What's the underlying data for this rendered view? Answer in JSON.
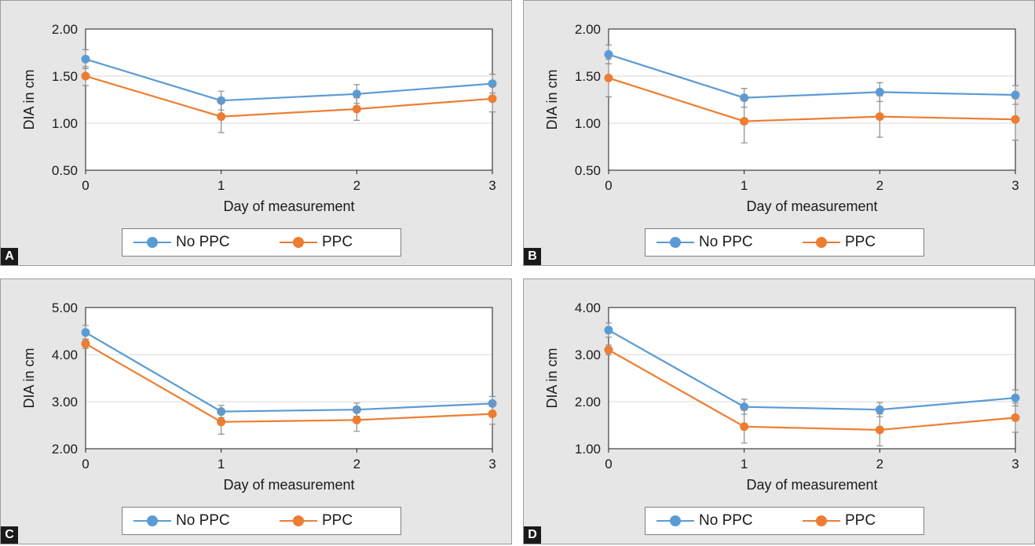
{
  "colors": {
    "no_ppc": "#5b9bd5",
    "ppc": "#ed7d31",
    "error_bar": "#8c8c8c",
    "grid": "#d9d9d9",
    "axis": "#1a1a1a",
    "panel_bg": "#e6e6e6"
  },
  "chart_data": [
    {
      "panel": "A",
      "type": "line",
      "xlabel": "Day of measurement",
      "ylabel": "DIA in cm",
      "x": [
        0,
        1,
        2,
        3
      ],
      "ylim": [
        0.5,
        2.0
      ],
      "yticks": [
        "0.50",
        "1.00",
        "1.50",
        "2.00"
      ],
      "grid": true,
      "legend": "bottom",
      "series": [
        {
          "name": "No PPC",
          "values": [
            1.68,
            1.24,
            1.31,
            1.42
          ],
          "error": [
            0.1,
            0.1,
            0.1,
            0.1
          ]
        },
        {
          "name": "PPC",
          "values": [
            1.5,
            1.07,
            1.15,
            1.26
          ],
          "error": [
            0.1,
            0.17,
            0.12,
            0.14
          ]
        }
      ]
    },
    {
      "panel": "B",
      "type": "line",
      "xlabel": "Day of measurement",
      "ylabel": "DIA in cm",
      "x": [
        0,
        1,
        2,
        3
      ],
      "ylim": [
        0.5,
        2.0
      ],
      "yticks": [
        "0.50",
        "1.00",
        "1.50",
        "2.00"
      ],
      "grid": true,
      "legend": "bottom",
      "series": [
        {
          "name": "No PPC",
          "values": [
            1.73,
            1.27,
            1.33,
            1.3
          ],
          "error": [
            0.1,
            0.1,
            0.1,
            0.1
          ]
        },
        {
          "name": "PPC",
          "values": [
            1.48,
            1.02,
            1.07,
            1.04
          ],
          "error": [
            0.2,
            0.23,
            0.22,
            0.22
          ]
        }
      ]
    },
    {
      "panel": "C",
      "type": "line",
      "xlabel": "Day of measurement",
      "ylabel": "DIA in cm",
      "x": [
        0,
        1,
        2,
        3
      ],
      "ylim": [
        2.0,
        5.0
      ],
      "yticks": [
        "2.00",
        "3.00",
        "4.00",
        "5.00"
      ],
      "grid": true,
      "legend": "bottom",
      "series": [
        {
          "name": "No PPC",
          "values": [
            4.47,
            2.79,
            2.83,
            2.96
          ],
          "error": [
            0.15,
            0.13,
            0.14,
            0.15
          ]
        },
        {
          "name": "PPC",
          "values": [
            4.23,
            2.57,
            2.61,
            2.74
          ],
          "error": [
            0.1,
            0.26,
            0.24,
            0.22
          ]
        }
      ]
    },
    {
      "panel": "D",
      "type": "line",
      "xlabel": "Day of measurement",
      "ylabel": "DIA in cm",
      "x": [
        0,
        1,
        2,
        3
      ],
      "ylim": [
        1.0,
        4.0
      ],
      "yticks": [
        "1.00",
        "2.00",
        "3.00",
        "4.00"
      ],
      "grid": true,
      "legend": "bottom",
      "series": [
        {
          "name": "No PPC",
          "values": [
            3.52,
            1.89,
            1.83,
            2.08
          ],
          "error": [
            0.15,
            0.16,
            0.15,
            0.17
          ]
        },
        {
          "name": "PPC",
          "values": [
            3.1,
            1.47,
            1.4,
            1.66
          ],
          "error": [
            0.1,
            0.35,
            0.34,
            0.31
          ]
        }
      ]
    }
  ]
}
